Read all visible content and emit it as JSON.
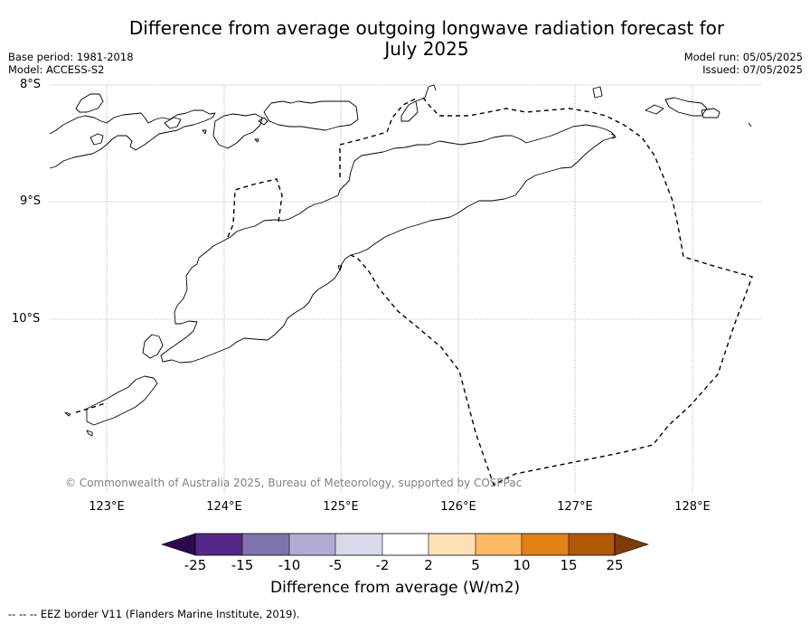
{
  "title_line1": "Difference from average outgoing longwave radiation forecast for",
  "title_line2": "July 2025",
  "meta_left": {
    "base_period": "Base period: 1981-2018",
    "model": "Model: ACCESS-S2"
  },
  "meta_right": {
    "model_run": "Model run: 05/05/2025",
    "issued": "Issued: 07/05/2025"
  },
  "latitude_labels": [
    "8°S",
    "9°S",
    "10°S"
  ],
  "longitude_labels": [
    "123°E",
    "124°E",
    "125°E",
    "126°E",
    "127°E",
    "128°E"
  ],
  "copyright": "© Commonwealth of Australia 2025, Bureau of Meteorology, supported by COSPPac",
  "colorbar": {
    "tick_labels": [
      "-25",
      "-15",
      "-10",
      "-5",
      "-2",
      "2",
      "5",
      "10",
      "15",
      "25"
    ],
    "under_color": "#2d0a4e",
    "over_color": "#7f3b08",
    "bin_colors": [
      "#542788",
      "#8073ac",
      "#b2abd2",
      "#d8daeb",
      "#ffffff",
      "#fee0b6",
      "#fdb863",
      "#e08214",
      "#b35806"
    ],
    "label": "Difference from average (W/m2)"
  },
  "footnote": "--  --  -- EEZ border V11 (Flanders Marine Institute, 2019)."
}
